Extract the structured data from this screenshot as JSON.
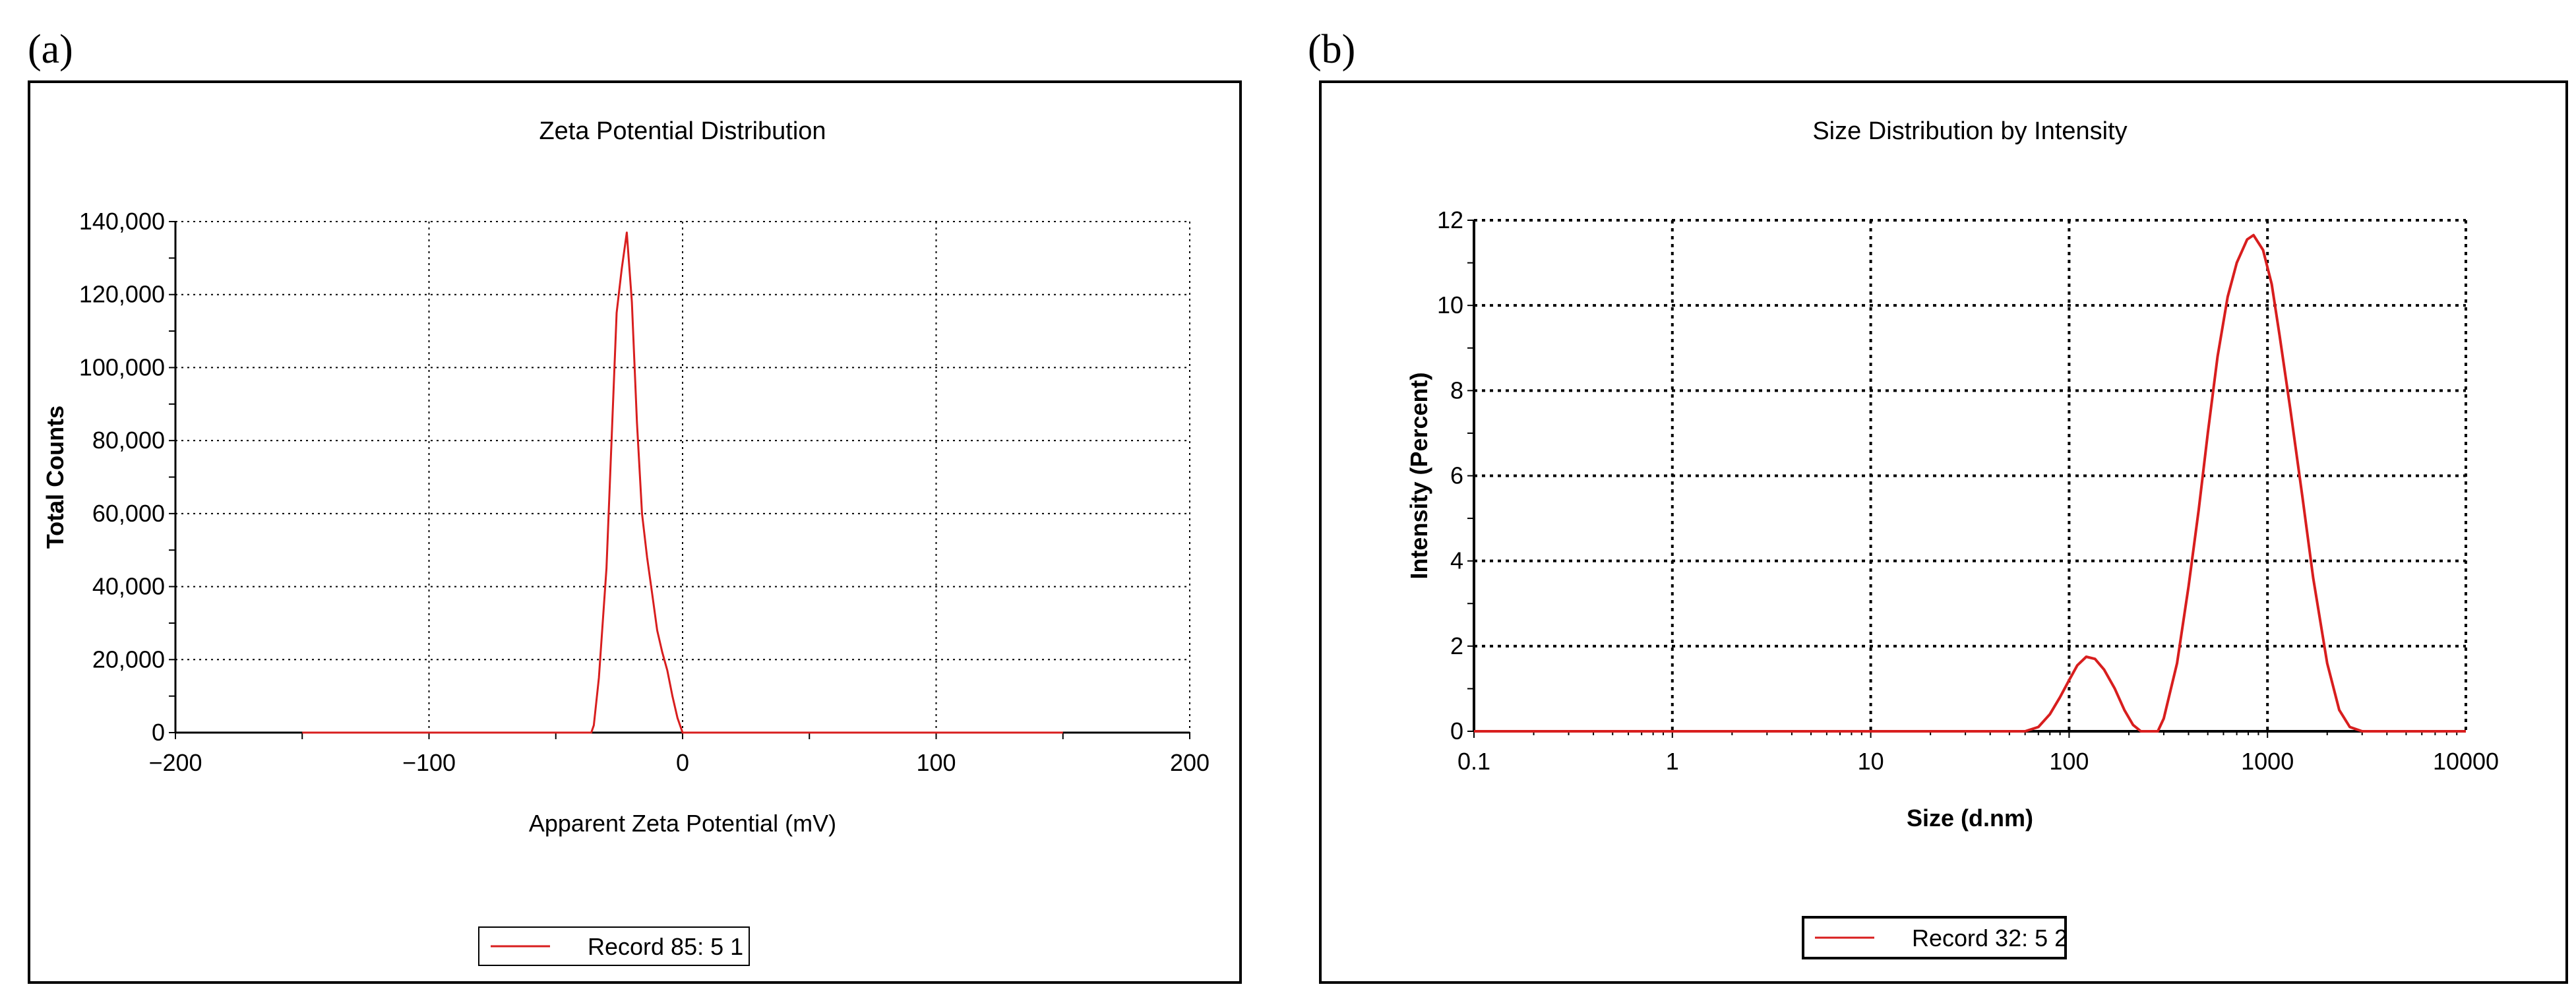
{
  "panels": {
    "a": {
      "label": "(a)"
    },
    "b": {
      "label": "(b)"
    }
  },
  "colors": {
    "series": "#d81e1e",
    "grid": "#000000",
    "axis": "#000000"
  },
  "chart_data": [
    {
      "type": "line",
      "title": "Zeta Potential Distribution",
      "xlabel": "Apparent Zeta Potential (mV)",
      "ylabel": "Total Counts",
      "xlim": [
        -200,
        200
      ],
      "ylim": [
        0,
        140000
      ],
      "xticks": [
        -200,
        -100,
        0,
        100,
        200
      ],
      "xtick_labels": [
        "−200",
        "−100",
        "0",
        "100",
        "200"
      ],
      "yticks": [
        0,
        20000,
        40000,
        60000,
        80000,
        100000,
        120000,
        140000
      ],
      "ytick_labels": [
        "0",
        "20,000",
        "40,000",
        "60,000",
        "80,000",
        "100,000",
        "120,000",
        "140,000"
      ],
      "grid": true,
      "legend_position": "bottom-center",
      "series": [
        {
          "name": "Record 85: 5 1",
          "x": [
            -150,
            -36,
            -35,
            -33,
            -30,
            -28,
            -26,
            -24,
            -22,
            -20,
            -18,
            -16,
            -14,
            -12,
            -10,
            -8,
            -6,
            -4,
            -2,
            0,
            2,
            150
          ],
          "y": [
            0,
            0,
            2000,
            15000,
            45000,
            80000,
            115000,
            127000,
            137000,
            118000,
            85000,
            60000,
            48000,
            38000,
            28000,
            22000,
            17000,
            10000,
            4000,
            0,
            0,
            0
          ]
        }
      ]
    },
    {
      "type": "line",
      "title": "Size Distribution by Intensity",
      "xlabel": "Size (d.nm)",
      "ylabel": "Intensity (Percent)",
      "xscale": "log",
      "xlim": [
        0.1,
        10000
      ],
      "ylim": [
        0,
        12
      ],
      "xticks": [
        0.1,
        1,
        10,
        100,
        1000,
        10000
      ],
      "xtick_labels": [
        "0.1",
        "1",
        "10",
        "100",
        "1000",
        "10000"
      ],
      "yticks": [
        0,
        2,
        4,
        6,
        8,
        10,
        12
      ],
      "ytick_labels": [
        "0",
        "2",
        "4",
        "6",
        "8",
        "10",
        "12"
      ],
      "grid": true,
      "legend_position": "bottom-center",
      "series": [
        {
          "name": "Record 32: 5 2",
          "x": [
            0.1,
            0.4,
            1,
            5,
            20,
            60,
            70,
            80,
            90,
            100,
            110,
            122,
            135,
            150,
            170,
            190,
            210,
            230,
            255,
            280,
            300,
            350,
            400,
            450,
            500,
            560,
            630,
            700,
            790,
            850,
            950,
            1050,
            1150,
            1300,
            1500,
            1700,
            2000,
            2300,
            2600,
            3000,
            10000
          ],
          "y": [
            0,
            0,
            0,
            0,
            0,
            0,
            0.1,
            0.4,
            0.8,
            1.2,
            1.55,
            1.75,
            1.7,
            1.45,
            1.0,
            0.5,
            0.15,
            0,
            0,
            0,
            0.3,
            1.6,
            3.4,
            5.2,
            7.0,
            8.8,
            10.2,
            11.0,
            11.55,
            11.65,
            11.3,
            10.5,
            9.3,
            7.6,
            5.5,
            3.6,
            1.6,
            0.5,
            0.1,
            0,
            0
          ]
        }
      ]
    }
  ]
}
